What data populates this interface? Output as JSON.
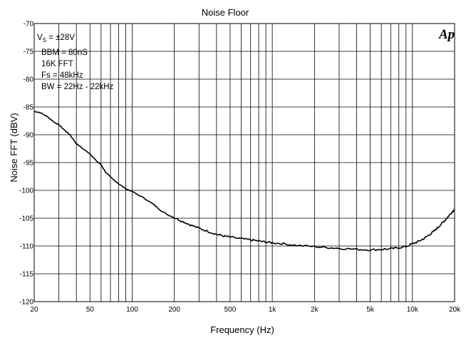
{
  "chart_data": {
    "type": "line",
    "title": "Noise Floor",
    "xlabel": "Frequency (Hz)",
    "ylabel": "Noise FFT (dBV)",
    "x_scale": "log",
    "xlim": [
      20,
      20000
    ],
    "ylim": [
      -120,
      -70
    ],
    "x_ticks": [
      20,
      50,
      100,
      200,
      500,
      1000,
      2000,
      5000,
      10000,
      20000
    ],
    "x_tick_labels": [
      "20",
      "50",
      "100",
      "200",
      "500",
      "1k",
      "2k",
      "5k",
      "10k",
      "20k"
    ],
    "y_ticks": [
      -70,
      -75,
      -80,
      -85,
      -90,
      -95,
      -100,
      -105,
      -110,
      -115,
      -120
    ],
    "y_tick_labels": [
      "-70",
      "-75",
      "-80",
      "-85",
      "-90",
      "-95",
      "-100",
      "-105",
      "-110",
      "-115",
      "-120"
    ],
    "grid": true,
    "annotations": [
      {
        "text_main": "V",
        "text_sub": "S",
        "text_rest": " = ±28V"
      },
      {
        "text": "BBM = 80nS"
      },
      {
        "text": "16K FFT"
      },
      {
        "text": "Fs = 48kHz"
      },
      {
        "text": "BW = 22Hz - 22kHz"
      }
    ],
    "logo": "Ap",
    "series": [
      {
        "color": "#000000",
        "x": [
          20,
          22,
          25,
          28,
          30,
          33,
          36,
          40,
          45,
          50,
          55,
          60,
          65,
          70,
          80,
          90,
          100,
          120,
          140,
          160,
          180,
          200,
          230,
          260,
          300,
          350,
          400,
          450,
          500,
          600,
          700,
          800,
          900,
          1000,
          1200,
          1500,
          2000,
          2500,
          3000,
          4000,
          5000,
          6000,
          7000,
          8000,
          9000,
          10000,
          11000,
          12000,
          13000,
          14000,
          15000,
          16000,
          17000,
          18000,
          19000,
          20000
        ],
        "y": [
          -85.8,
          -86.0,
          -86.8,
          -87.8,
          -88.2,
          -89.2,
          -90.0,
          -91.6,
          -92.6,
          -93.4,
          -94.6,
          -95.4,
          -96.8,
          -97.6,
          -98.8,
          -99.7,
          -100.2,
          -101.3,
          -102.4,
          -103.6,
          -104.4,
          -104.9,
          -105.6,
          -106.2,
          -106.8,
          -107.4,
          -107.9,
          -108.2,
          -108.4,
          -108.7,
          -108.9,
          -109.1,
          -109.3,
          -109.4,
          -109.6,
          -109.9,
          -110.1,
          -110.3,
          -110.4,
          -110.6,
          -110.7,
          -110.6,
          -110.5,
          -110.3,
          -110.1,
          -109.6,
          -109.2,
          -108.7,
          -108.1,
          -107.5,
          -106.8,
          -106.1,
          -105.4,
          -104.7,
          -104.0,
          -103.4
        ]
      }
    ]
  }
}
